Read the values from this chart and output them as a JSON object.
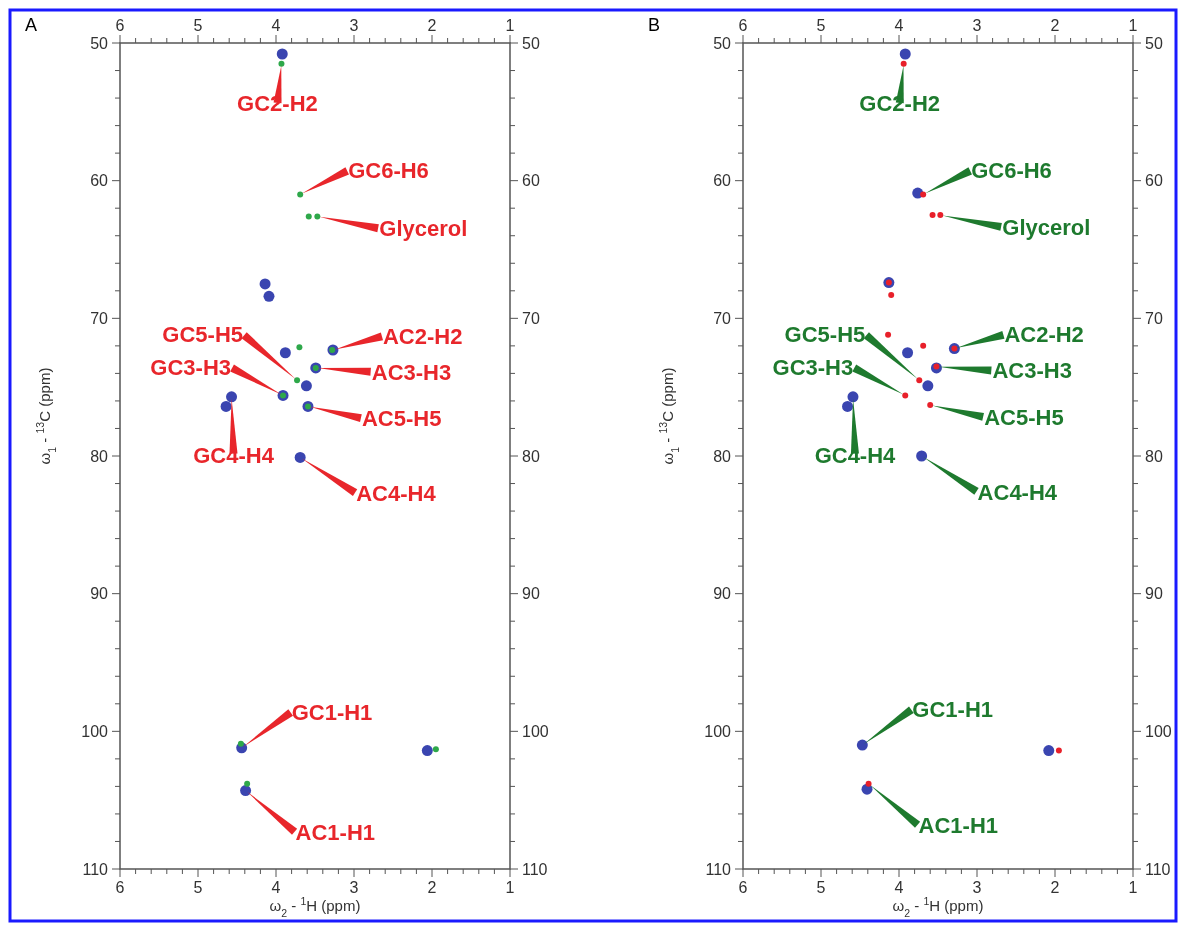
{
  "chart_data": [
    {
      "type": "scatter",
      "title": "A",
      "xlabel": "ω$_{2}$ - $^{1}$H (ppm)",
      "ylabel": "ω$_{1}$ - $^{13}$C (ppm)",
      "marker": "circle",
      "xlim": [
        6,
        1
      ],
      "ylim": [
        110,
        50
      ],
      "x2lim": [
        6,
        1
      ],
      "y2lim": [
        110,
        50
      ],
      "xticks": [
        6,
        {
          "value": 5.8,
          "label": null
        },
        {
          "value": 5.6,
          "label": null
        },
        {
          "value": 5.4,
          "label": null
        },
        {
          "value": 5.2,
          "label": null
        },
        5,
        {
          "value": 4.8,
          "label": null
        },
        {
          "value": 4.6,
          "label": null
        },
        {
          "value": 4.4,
          "label": null
        },
        {
          "value": 4.2,
          "label": null
        },
        4,
        {
          "value": 3.8,
          "label": null
        },
        {
          "value": 3.6,
          "label": null
        },
        {
          "value": 3.4,
          "label": null
        },
        {
          "value": 3.2,
          "label": null
        },
        3,
        {
          "value": 2.8,
          "label": null
        },
        {
          "value": 2.6,
          "label": null
        },
        {
          "value": 2.4,
          "label": null
        },
        {
          "value": 2.2,
          "label": null
        },
        2,
        {
          "value": 1.8,
          "label": null
        },
        {
          "value": 1.6,
          "label": null
        },
        {
          "value": 1.4,
          "label": null
        },
        {
          "value": 1.2,
          "label": null
        },
        1
      ],
      "x2ticks": [
        6,
        {
          "value": 5.8,
          "label": null
        },
        {
          "value": 5.6,
          "label": null
        },
        {
          "value": 5.4,
          "label": null
        },
        {
          "value": 5.2,
          "label": null
        },
        5,
        {
          "value": 4.8,
          "label": null
        },
        {
          "value": 4.6,
          "label": null
        },
        {
          "value": 4.4,
          "label": null
        },
        {
          "value": 4.2,
          "label": null
        },
        4,
        {
          "value": 3.8,
          "label": null
        },
        {
          "value": 3.6,
          "label": null
        },
        {
          "value": 3.4,
          "label": null
        },
        {
          "value": 3.2,
          "label": null
        },
        3,
        {
          "value": 2.8,
          "label": null
        },
        {
          "value": 2.6,
          "label": null
        },
        {
          "value": 2.4,
          "label": null
        },
        {
          "value": 2.2,
          "label": null
        },
        2,
        {
          "value": 1.8,
          "label": null
        },
        {
          "value": 1.6,
          "label": null
        },
        {
          "value": 1.4,
          "label": null
        },
        {
          "value": 1.2,
          "label": null
        },
        1
      ],
      "yticks": [
        50,
        {
          "value": 52,
          "label": null
        },
        {
          "value": 54,
          "label": null
        },
        {
          "value": 56,
          "label": null
        },
        {
          "value": 58,
          "label": null
        },
        60,
        {
          "value": 62,
          "label": null
        },
        {
          "value": 64,
          "label": null
        },
        {
          "value": 66,
          "label": null
        },
        {
          "value": 68,
          "label": null
        },
        70,
        {
          "value": 72,
          "label": null
        },
        {
          "value": 74,
          "label": null
        },
        {
          "value": 76,
          "label": null
        },
        {
          "value": 78,
          "label": null
        },
        80,
        {
          "value": 82,
          "label": null
        },
        {
          "value": 84,
          "label": null
        },
        {
          "value": 86,
          "label": null
        },
        {
          "value": 88,
          "label": null
        },
        90,
        {
          "value": 92,
          "label": null
        },
        {
          "value": 94,
          "label": null
        },
        {
          "value": 96,
          "label": null
        },
        {
          "value": 98,
          "label": null
        },
        100,
        {
          "value": 102,
          "label": null
        },
        {
          "value": 104,
          "label": null
        },
        {
          "value": 106,
          "label": null
        },
        {
          "value": 108,
          "label": null
        },
        110
      ],
      "y2ticks": [
        50,
        {
          "value": 52,
          "label": null
        },
        {
          "value": 54,
          "label": null
        },
        {
          "value": 56,
          "label": null
        },
        {
          "value": 58,
          "label": null
        },
        60,
        {
          "value": 62,
          "label": null
        },
        {
          "value": 64,
          "label": null
        },
        {
          "value": 66,
          "label": null
        },
        {
          "value": 68,
          "label": null
        },
        70,
        {
          "value": 72,
          "label": null
        },
        {
          "value": 74,
          "label": null
        },
        {
          "value": 76,
          "label": null
        },
        {
          "value": 78,
          "label": null
        },
        80,
        {
          "value": 82,
          "label": null
        },
        {
          "value": 84,
          "label": null
        },
        {
          "value": 86,
          "label": null
        },
        {
          "value": 88,
          "label": null
        },
        90,
        {
          "value": 92,
          "label": null
        },
        {
          "value": 94,
          "label": null
        },
        {
          "value": 96,
          "label": null
        },
        {
          "value": 98,
          "label": null
        },
        100,
        {
          "value": 102,
          "label": null
        },
        {
          "value": 104,
          "label": null
        },
        {
          "value": 106,
          "label": null
        },
        {
          "value": 108,
          "label": null
        },
        110
      ],
      "series": [
        {
          "color": "#3a45b0",
          "x": [
            3.92,
            4.14,
            4.09,
            3.88,
            3.27,
            3.49,
            3.61,
            3.91,
            4.64,
            4.57,
            3.59,
            3.69,
            4.44,
            4.39,
            2.06
          ],
          "values": [
            50.8,
            67.5,
            68.4,
            72.5,
            72.3,
            73.6,
            74.9,
            75.6,
            76.4,
            75.7,
            76.4,
            80.1,
            101.2,
            104.3,
            101.4
          ]
        },
        {
          "color": "#2ea84a",
          "x": [
            3.93,
            3.69,
            3.58,
            3.47,
            3.7,
            3.73,
            3.28,
            3.49,
            3.91,
            3.59,
            4.45,
            4.37,
            1.95
          ],
          "values": [
            51.5,
            61.0,
            62.6,
            62.6,
            72.1,
            74.5,
            72.3,
            73.6,
            75.6,
            76.4,
            100.9,
            103.8,
            101.3
          ]
        }
      ],
      "annotations": [
        {
          "text": "GC2-H2",
          "x": 3.93,
          "y": 51.5
        },
        {
          "text": "GC6-H6",
          "x": 3.69,
          "y": 61.0
        },
        {
          "text": "Glycerol",
          "x": 3.47,
          "y": 62.6
        },
        {
          "text": "GC5-H5",
          "x": 3.73,
          "y": 74.5
        },
        {
          "text": "GC3-H3",
          "x": 3.91,
          "y": 75.6
        },
        {
          "text": "GC4-H4",
          "x": 4.57,
          "y": 75.7
        },
        {
          "text": "AC2-H2",
          "x": 3.27,
          "y": 72.3
        },
        {
          "text": "AC3-H3",
          "x": 3.49,
          "y": 73.6
        },
        {
          "text": "AC5-H5",
          "x": 3.59,
          "y": 76.4
        },
        {
          "text": "AC4-H4",
          "x": 3.69,
          "y": 80.1
        },
        {
          "text": "GC1-H1",
          "x": 4.44,
          "y": 101.2
        },
        {
          "text": "AC1-H1",
          "x": 4.39,
          "y": 104.3
        }
      ]
    },
    {
      "type": "scatter",
      "title": "B",
      "xlabel": "ω$_{2}$ - $^{1}$H (ppm)",
      "ylabel": "ω$_{1}$ - $^{13}$C (ppm)",
      "marker": "circle",
      "xlim": [
        6,
        1
      ],
      "ylim": [
        110,
        50
      ],
      "x2lim": [
        6,
        1
      ],
      "y2lim": [
        110,
        50
      ],
      "xticks": [
        6,
        {
          "value": 5.8,
          "label": null
        },
        {
          "value": 5.6,
          "label": null
        },
        {
          "value": 5.4,
          "label": null
        },
        {
          "value": 5.2,
          "label": null
        },
        5,
        {
          "value": 4.8,
          "label": null
        },
        {
          "value": 4.6,
          "label": null
        },
        {
          "value": 4.4,
          "label": null
        },
        {
          "value": 4.2,
          "label": null
        },
        4,
        {
          "value": 3.8,
          "label": null
        },
        {
          "value": 3.6,
          "label": null
        },
        {
          "value": 3.4,
          "label": null
        },
        {
          "value": 3.2,
          "label": null
        },
        3,
        {
          "value": 2.8,
          "label": null
        },
        {
          "value": 2.6,
          "label": null
        },
        {
          "value": 2.4,
          "label": null
        },
        {
          "value": 2.2,
          "label": null
        },
        2,
        {
          "value": 1.8,
          "label": null
        },
        {
          "value": 1.6,
          "label": null
        },
        {
          "value": 1.4,
          "label": null
        },
        {
          "value": 1.2,
          "label": null
        },
        1
      ],
      "x2ticks": [
        6,
        {
          "value": 5.8,
          "label": null
        },
        {
          "value": 5.6,
          "label": null
        },
        {
          "value": 5.4,
          "label": null
        },
        {
          "value": 5.2,
          "label": null
        },
        5,
        {
          "value": 4.8,
          "label": null
        },
        {
          "value": 4.6,
          "label": null
        },
        {
          "value": 4.4,
          "label": null
        },
        {
          "value": 4.2,
          "label": null
        },
        4,
        {
          "value": 3.8,
          "label": null
        },
        {
          "value": 3.6,
          "label": null
        },
        {
          "value": 3.4,
          "label": null
        },
        {
          "value": 3.2,
          "label": null
        },
        3,
        {
          "value": 2.8,
          "label": null
        },
        {
          "value": 2.6,
          "label": null
        },
        {
          "value": 2.4,
          "label": null
        },
        {
          "value": 2.2,
          "label": null
        },
        2,
        {
          "value": 1.8,
          "label": null
        },
        {
          "value": 1.6,
          "label": null
        },
        {
          "value": 1.4,
          "label": null
        },
        {
          "value": 1.2,
          "label": null
        },
        1
      ],
      "yticks": [
        50,
        {
          "value": 52,
          "label": null
        },
        {
          "value": 54,
          "label": null
        },
        {
          "value": 56,
          "label": null
        },
        {
          "value": 58,
          "label": null
        },
        60,
        {
          "value": 62,
          "label": null
        },
        {
          "value": 64,
          "label": null
        },
        {
          "value": 66,
          "label": null
        },
        {
          "value": 68,
          "label": null
        },
        70,
        {
          "value": 72,
          "label": null
        },
        {
          "value": 74,
          "label": null
        },
        {
          "value": 76,
          "label": null
        },
        {
          "value": 78,
          "label": null
        },
        80,
        {
          "value": 82,
          "label": null
        },
        {
          "value": 84,
          "label": null
        },
        {
          "value": 86,
          "label": null
        },
        {
          "value": 88,
          "label": null
        },
        90,
        {
          "value": 92,
          "label": null
        },
        {
          "value": 94,
          "label": null
        },
        {
          "value": 96,
          "label": null
        },
        {
          "value": 98,
          "label": null
        },
        100,
        {
          "value": 102,
          "label": null
        },
        {
          "value": 104,
          "label": null
        },
        {
          "value": 106,
          "label": null
        },
        {
          "value": 108,
          "label": null
        },
        110
      ],
      "y2ticks": [
        50,
        {
          "value": 52,
          "label": null
        },
        {
          "value": 54,
          "label": null
        },
        {
          "value": 56,
          "label": null
        },
        {
          "value": 58,
          "label": null
        },
        60,
        {
          "value": 62,
          "label": null
        },
        {
          "value": 64,
          "label": null
        },
        {
          "value": 66,
          "label": null
        },
        {
          "value": 68,
          "label": null
        },
        70,
        {
          "value": 72,
          "label": null
        },
        {
          "value": 74,
          "label": null
        },
        {
          "value": 76,
          "label": null
        },
        {
          "value": 78,
          "label": null
        },
        80,
        {
          "value": 82,
          "label": null
        },
        {
          "value": 84,
          "label": null
        },
        {
          "value": 86,
          "label": null
        },
        {
          "value": 88,
          "label": null
        },
        90,
        {
          "value": 92,
          "label": null
        },
        {
          "value": 94,
          "label": null
        },
        {
          "value": 96,
          "label": null
        },
        {
          "value": 98,
          "label": null
        },
        100,
        {
          "value": 102,
          "label": null
        },
        {
          "value": 104,
          "label": null
        },
        {
          "value": 106,
          "label": null
        },
        {
          "value": 108,
          "label": null
        },
        110
      ],
      "series": [
        {
          "color": "#3a45b0",
          "x": [
            3.92,
            3.76,
            4.13,
            3.89,
            3.29,
            3.52,
            3.63,
            4.66,
            4.59,
            3.71,
            4.47,
            4.41,
            2.08
          ],
          "values": [
            50.8,
            60.9,
            67.4,
            72.5,
            72.2,
            73.6,
            74.9,
            76.4,
            75.7,
            80.0,
            101.0,
            104.2,
            101.4
          ]
        },
        {
          "color": "#e8202a",
          "x": [
            3.94,
            3.69,
            3.57,
            3.47,
            4.13,
            4.1,
            4.14,
            3.69,
            3.29,
            3.52,
            3.74,
            3.92,
            3.6,
            4.39,
            1.95
          ],
          "values": [
            51.5,
            61.0,
            62.5,
            62.5,
            67.4,
            68.3,
            71.2,
            72.0,
            72.2,
            73.5,
            74.5,
            75.6,
            76.3,
            103.8,
            101.4
          ]
        }
      ],
      "annotations": [
        {
          "text": "GC2-H2",
          "x": 3.94,
          "y": 51.5
        },
        {
          "text": "GC6-H6",
          "x": 3.69,
          "y": 61.0
        },
        {
          "text": "Glycerol",
          "x": 3.47,
          "y": 62.5
        },
        {
          "text": "GC5-H5",
          "x": 3.74,
          "y": 74.5
        },
        {
          "text": "GC3-H3",
          "x": 3.92,
          "y": 75.6
        },
        {
          "text": "GC4-H4",
          "x": 4.59,
          "y": 75.7
        },
        {
          "text": "AC2-H2",
          "x": 3.29,
          "y": 72.2
        },
        {
          "text": "AC3-H3",
          "x": 3.52,
          "y": 73.5
        },
        {
          "text": "AC5-H5",
          "x": 3.6,
          "y": 76.3
        },
        {
          "text": "AC4-H4",
          "x": 3.71,
          "y": 80.0
        },
        {
          "text": "GC1-H1",
          "x": 4.47,
          "y": 101.0
        },
        {
          "text": "AC1-H1",
          "x": 4.39,
          "y": 103.8
        }
      ]
    }
  ]
}
